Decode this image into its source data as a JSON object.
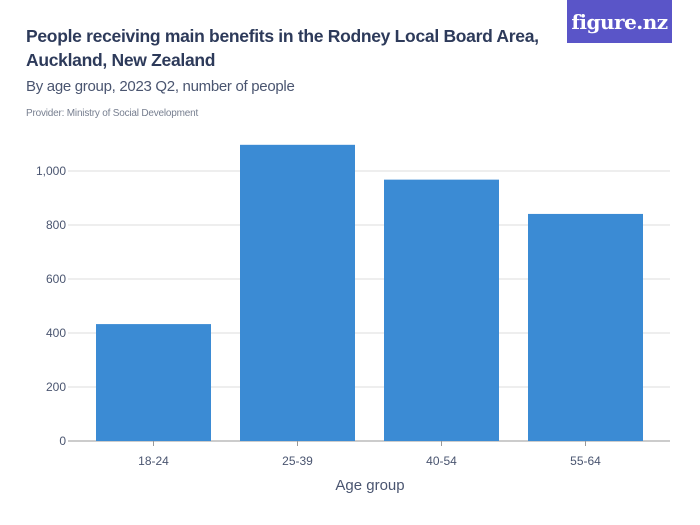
{
  "header": {
    "title": "People receiving main benefits in the Rodney Local Board Area, Auckland, New Zealand",
    "subtitle": "By age group, 2023 Q2, number of people",
    "provider": "Provider: Ministry of Social Development",
    "logo": "figure.nz"
  },
  "chart_data": {
    "type": "bar",
    "title": "People receiving main benefits in the Rodney Local Board Area, Auckland, New Zealand",
    "subtitle": "By age group, 2023 Q2, number of people",
    "categories": [
      "18-24",
      "25-39",
      "40-54",
      "55-64"
    ],
    "values": [
      433,
      1097,
      968,
      841
    ],
    "xlabel": "Age group",
    "ylabel": "",
    "ylim": [
      0,
      1100
    ],
    "yticks": [
      0,
      200,
      400,
      600,
      800,
      1000
    ],
    "ytick_labels": [
      "0",
      "200",
      "400",
      "600",
      "800",
      "1,000"
    ],
    "grid": true,
    "bar_color": "#3b8bd4"
  }
}
